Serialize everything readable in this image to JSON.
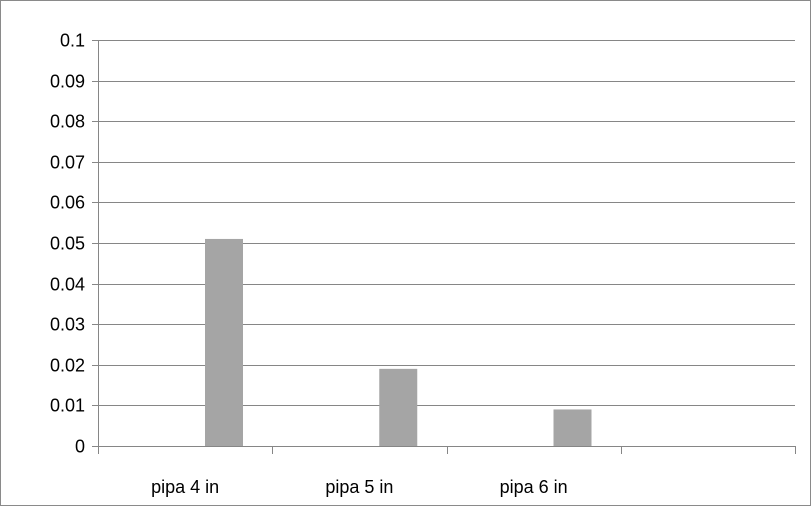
{
  "chart_data": {
    "type": "bar",
    "title": "",
    "xlabel": "",
    "ylabel": "",
    "categories": [
      "pipa 4 in",
      "pipa 5 in",
      "pipa 6 in",
      ""
    ],
    "series": [
      {
        "values": [
          0.051,
          0.019,
          0.009,
          null
        ]
      }
    ],
    "ylim": [
      0,
      0.1
    ],
    "yticks": [
      "0",
      "0.01",
      "0.02",
      "0.03",
      "0.04",
      "0.05",
      "0.06",
      "0.07",
      "0.08",
      "0.09",
      "0.1"
    ],
    "grid": true,
    "legend": "none",
    "colors": {
      "bar": "#a5a5a5",
      "grid": "#868686",
      "axis": "#868686"
    }
  }
}
